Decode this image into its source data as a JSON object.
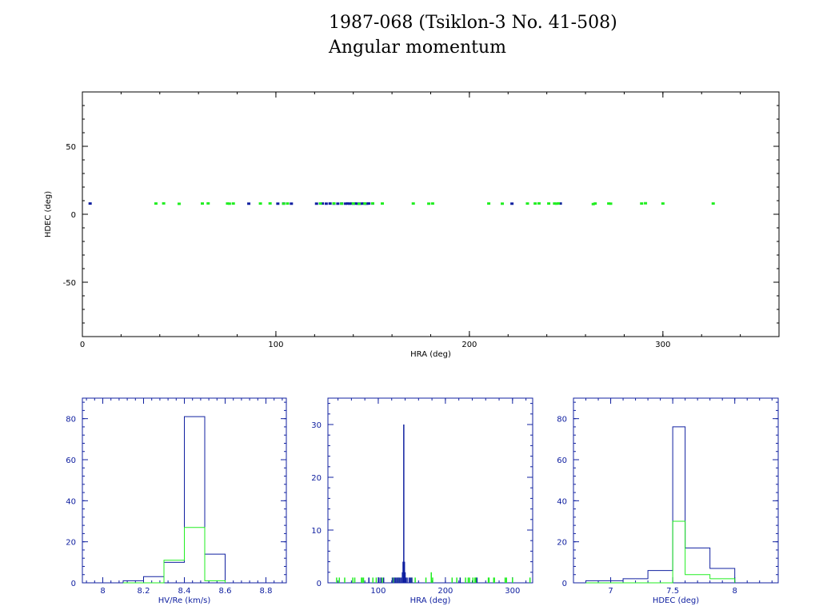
{
  "title_line1": "1987-068 (Tsiklon-3 No. 41-508)",
  "title_line2": "Angular momentum",
  "colors": {
    "blue": "#1020a0",
    "green": "#22ee22",
    "axes": "#000000",
    "hist_axes": "#1020a0"
  },
  "chart_data": [
    {
      "type": "scatter",
      "xlabel": "HRA (deg)",
      "ylabel": "HDEC (deg)",
      "xlim": [
        0,
        360
      ],
      "ylim": [
        -90,
        90
      ],
      "xticks": [
        0,
        100,
        200,
        300
      ],
      "yticks": [
        -50,
        0,
        50
      ],
      "series": [
        {
          "color": "blue",
          "points": [
            [
              4,
              7.6
            ],
            [
              86,
              7.5
            ],
            [
              101,
              7.5
            ],
            [
              104,
              7.6
            ],
            [
              108,
              7.5
            ],
            [
              121,
              7.5
            ],
            [
              124,
              7.6
            ],
            [
              126,
              7.5
            ],
            [
              128,
              7.6
            ],
            [
              130,
              7.5
            ],
            [
              132,
              7.5
            ],
            [
              134,
              7.6
            ],
            [
              136,
              7.5
            ],
            [
              137,
              7.6
            ],
            [
              138,
              7.5
            ],
            [
              139,
              7.6
            ],
            [
              140,
              7.5
            ],
            [
              141,
              7.6
            ],
            [
              142,
              7.5
            ],
            [
              143,
              7.5
            ],
            [
              144,
              7.5
            ],
            [
              145,
              7.6
            ],
            [
              146,
              7.5
            ],
            [
              147,
              7.5
            ],
            [
              148,
              7.6
            ],
            [
              150,
              7.6
            ],
            [
              222,
              7.5
            ],
            [
              247,
              7.6
            ]
          ]
        },
        {
          "color": "green",
          "points": [
            [
              38,
              7.6
            ],
            [
              42,
              7.7
            ],
            [
              50,
              7.4
            ],
            [
              62,
              7.6
            ],
            [
              65,
              7.7
            ],
            [
              75,
              7.6
            ],
            [
              76,
              7.5
            ],
            [
              78,
              7.6
            ],
            [
              92,
              7.6
            ],
            [
              97,
              7.7
            ],
            [
              104,
              7.5
            ],
            [
              106,
              7.6
            ],
            [
              123,
              7.6
            ],
            [
              130,
              7.7
            ],
            [
              134,
              7.5
            ],
            [
              140,
              7.6
            ],
            [
              143,
              7.4
            ],
            [
              146,
              7.6
            ],
            [
              150,
              7.7
            ],
            [
              155,
              7.6
            ],
            [
              171,
              7.6
            ],
            [
              179,
              7.5
            ],
            [
              181,
              7.6
            ],
            [
              210,
              7.6
            ],
            [
              217,
              7.5
            ],
            [
              230,
              7.6
            ],
            [
              234,
              7.6
            ],
            [
              236,
              7.7
            ],
            [
              241,
              7.6
            ],
            [
              244,
              7.6
            ],
            [
              245,
              7.5
            ],
            [
              246,
              7.7
            ],
            [
              264,
              7.2
            ],
            [
              265,
              7.6
            ],
            [
              272,
              7.6
            ],
            [
              273,
              7.5
            ],
            [
              289,
              7.6
            ],
            [
              291,
              7.8
            ],
            [
              300,
              7.6
            ],
            [
              326,
              7.6
            ]
          ]
        }
      ]
    },
    {
      "type": "histogram",
      "xlabel": "HV/Re (km/s)",
      "xlim": [
        7.9,
        8.9
      ],
      "ylim": [
        0,
        90
      ],
      "xticks": [
        8,
        8.2,
        8.4,
        8.6,
        8.8
      ],
      "yticks": [
        0,
        20,
        40,
        60,
        80
      ],
      "bin_edges": [
        8.1,
        8.2,
        8.3,
        8.4,
        8.5,
        8.6
      ],
      "series": [
        {
          "color": "blue",
          "counts": [
            1,
            3,
            10,
            81,
            14
          ]
        },
        {
          "color": "green",
          "counts": [
            0,
            0,
            11,
            27,
            1
          ]
        }
      ]
    },
    {
      "type": "histogram",
      "xlabel": "HRA (deg)",
      "xlim": [
        25,
        330
      ],
      "ylim": [
        0,
        35
      ],
      "xticks": [
        100,
        200,
        300
      ],
      "yticks": [
        0,
        10,
        20,
        30
      ],
      "series": [
        {
          "color": "blue",
          "spikes": [
            [
              86,
              1
            ],
            [
              101,
              1
            ],
            [
              104,
              1
            ],
            [
              108,
              1
            ],
            [
              121,
              1
            ],
            [
              124,
              1
            ],
            [
              126,
              1
            ],
            [
              128,
              1
            ],
            [
              130,
              1
            ],
            [
              132,
              1
            ],
            [
              134,
              1
            ],
            [
              136,
              2
            ],
            [
              137,
              4
            ],
            [
              138,
              30
            ],
            [
              139,
              4
            ],
            [
              140,
              2
            ],
            [
              141,
              1
            ],
            [
              143,
              1
            ],
            [
              146,
              1
            ],
            [
              148,
              1
            ],
            [
              150,
              1
            ],
            [
              222,
              1
            ],
            [
              247,
              1
            ]
          ]
        },
        {
          "color": "green",
          "spikes": [
            [
              38,
              1
            ],
            [
              42,
              1
            ],
            [
              50,
              1
            ],
            [
              62,
              1
            ],
            [
              65,
              1
            ],
            [
              75,
              1
            ],
            [
              76,
              1
            ],
            [
              78,
              1
            ],
            [
              92,
              1
            ],
            [
              97,
              1
            ],
            [
              104,
              1
            ],
            [
              106,
              1
            ],
            [
              123,
              1
            ],
            [
              130,
              1
            ],
            [
              140,
              1
            ],
            [
              150,
              1
            ],
            [
              155,
              1
            ],
            [
              171,
              1
            ],
            [
              179,
              2
            ],
            [
              181,
              1
            ],
            [
              210,
              1
            ],
            [
              217,
              1
            ],
            [
              230,
              1
            ],
            [
              234,
              1
            ],
            [
              236,
              1
            ],
            [
              241,
              1
            ],
            [
              244,
              1
            ],
            [
              245,
              1
            ],
            [
              246,
              1
            ],
            [
              264,
              1
            ],
            [
              265,
              1
            ],
            [
              272,
              1
            ],
            [
              273,
              1
            ],
            [
              289,
              1
            ],
            [
              291,
              1
            ],
            [
              300,
              1
            ],
            [
              326,
              1
            ]
          ]
        }
      ]
    },
    {
      "type": "histogram",
      "xlabel": "HDEC (deg)",
      "xlim": [
        6.7,
        8.35
      ],
      "ylim": [
        0,
        90
      ],
      "xticks": [
        7,
        7.5,
        8
      ],
      "xtick_labels": [
        "7",
        "7.5",
        "8"
      ],
      "yticks": [
        0,
        20,
        40,
        60,
        80
      ],
      "bin_edges": [
        6.8,
        6.9,
        7.0,
        7.1,
        7.2,
        7.3,
        7.4,
        7.5,
        7.6,
        7.7,
        7.8,
        7.9,
        8.0
      ],
      "series": [
        {
          "color": "blue",
          "counts": [
            1,
            1,
            1,
            2,
            2,
            6,
            6,
            76,
            17,
            17,
            7,
            7
          ]
        },
        {
          "color": "green",
          "counts": [
            0,
            0,
            0,
            0,
            0,
            0,
            0,
            30,
            4,
            4,
            2,
            2
          ]
        }
      ]
    }
  ]
}
